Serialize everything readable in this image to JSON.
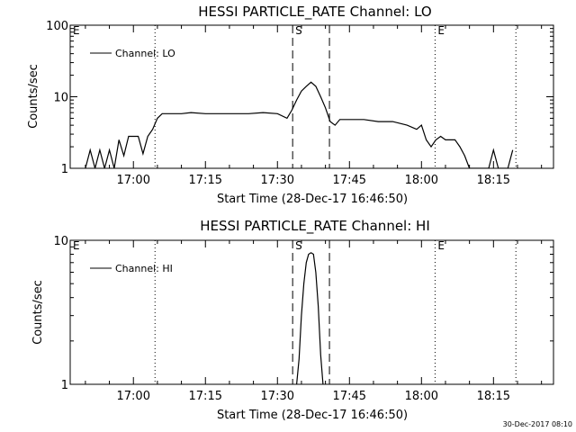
{
  "timestamp": "30-Dec-2017 08:10",
  "chart_data": [
    {
      "type": "line",
      "title": "HESSI PARTICLE_RATE Channel: LO",
      "xlabel": "Start Time (28-Dec-17 16:46:50)",
      "ylabel": "Counts/sec",
      "yscale": "log",
      "ylim": [
        1,
        100
      ],
      "xlim": [
        "16:46:50",
        "18:27:30"
      ],
      "xticks": [
        "17:00",
        "17:15",
        "17:30",
        "17:45",
        "18:00",
        "18:15"
      ],
      "yticks": [
        "1",
        "10",
        "100"
      ],
      "grid": false,
      "legend": {
        "position": "top-left",
        "entries": [
          "Channel: LO"
        ]
      },
      "markers": [
        {
          "label": "E",
          "time": "16:46:50",
          "style": "none"
        },
        {
          "label": "",
          "time": "17:04:30",
          "style": "dotted"
        },
        {
          "label": "S",
          "time": "17:33:10",
          "style": "dashed"
        },
        {
          "label": "",
          "time": "17:40:50",
          "style": "dashed"
        },
        {
          "label": "E",
          "time": "18:02:50",
          "style": "dotted"
        },
        {
          "label": "",
          "time": "18:19:40",
          "style": "dotted"
        }
      ],
      "series": [
        {
          "name": "Channel: LO",
          "x": [
            "16:50",
            "16:51",
            "16:52",
            "16:53",
            "16:54",
            "16:55",
            "16:56",
            "16:57",
            "16:58",
            "16:59",
            "17:00",
            "17:01",
            "17:02",
            "17:03",
            "17:04",
            "17:05",
            "17:06",
            "17:08",
            "17:10",
            "17:12",
            "17:15",
            "17:18",
            "17:21",
            "17:24",
            "17:27",
            "17:30",
            "17:32",
            "17:33",
            "17:34",
            "17:35",
            "17:36",
            "17:37",
            "17:38",
            "17:39",
            "17:40",
            "17:41",
            "17:42",
            "17:43",
            "17:45",
            "17:48",
            "17:51",
            "17:54",
            "17:57",
            "17:59",
            "18:00",
            "18:01",
            "18:02",
            "18:03",
            "18:04",
            "18:05",
            "18:06",
            "18:07",
            "18:08",
            "18:09",
            "18:10",
            "18:11",
            "18:12",
            "18:13",
            "18:14",
            "18:15",
            "18:16",
            "18:17",
            "18:18",
            "18:19"
          ],
          "values": [
            1,
            1.8,
            1,
            1.8,
            1,
            1.8,
            1,
            2.5,
            1.5,
            2.8,
            2.8,
            2.8,
            1.6,
            2.8,
            3.5,
            5,
            5.8,
            5.8,
            5.8,
            6,
            5.8,
            5.8,
            5.8,
            5.8,
            6,
            5.8,
            5,
            6.5,
            9,
            12,
            14,
            16,
            14,
            10,
            7,
            4.5,
            4,
            4.8,
            4.8,
            4.8,
            4.5,
            4.5,
            4,
            3.5,
            4,
            2.5,
            2,
            2.5,
            2.8,
            2.5,
            2.5,
            2.5,
            2,
            1.5,
            1,
            1,
            1,
            1,
            1,
            1.8,
            1,
            1,
            1,
            1.8
          ]
        }
      ]
    },
    {
      "type": "line",
      "title": "HESSI PARTICLE_RATE Channel: HI",
      "xlabel": "Start Time (28-Dec-17 16:46:50)",
      "ylabel": "Counts/sec",
      "yscale": "log",
      "ylim": [
        1,
        10
      ],
      "xlim": [
        "16:46:50",
        "18:27:30"
      ],
      "xticks": [
        "17:00",
        "17:15",
        "17:30",
        "17:45",
        "18:00",
        "18:15"
      ],
      "yticks": [
        "1",
        "10"
      ],
      "grid": false,
      "legend": {
        "position": "top-left",
        "entries": [
          "Channel: HI"
        ]
      },
      "markers": [
        {
          "label": "E",
          "time": "16:46:50",
          "style": "none"
        },
        {
          "label": "",
          "time": "17:04:30",
          "style": "dotted"
        },
        {
          "label": "S",
          "time": "17:33:10",
          "style": "dashed"
        },
        {
          "label": "",
          "time": "17:40:50",
          "style": "dashed"
        },
        {
          "label": "E",
          "time": "18:02:50",
          "style": "dotted"
        },
        {
          "label": "",
          "time": "18:19:40",
          "style": "dotted"
        }
      ],
      "series": [
        {
          "name": "Channel: HI",
          "x": [
            "17:34",
            "17:34.5",
            "17:35",
            "17:35.5",
            "17:36",
            "17:36.5",
            "17:37",
            "17:37.5",
            "17:38",
            "17:38.5",
            "17:39",
            "17:39.5"
          ],
          "values": [
            1,
            1.5,
            3,
            5,
            7,
            8,
            8.2,
            8,
            6,
            3.5,
            1.6,
            1
          ]
        }
      ]
    }
  ]
}
